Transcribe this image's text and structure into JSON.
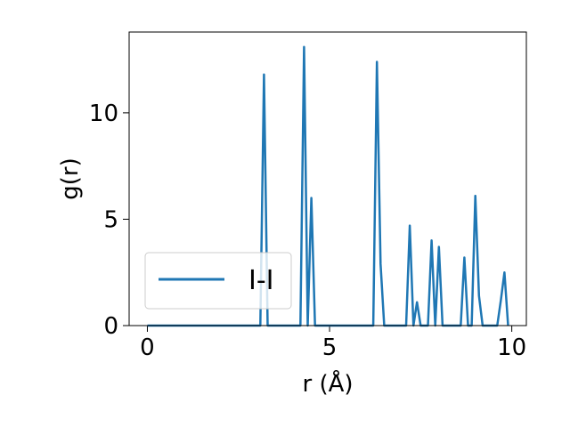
{
  "chart_data": {
    "type": "line",
    "title": "",
    "xlabel": "r (Å)",
    "ylabel": "g(r)",
    "xlim": [
      -0.5,
      10.4
    ],
    "ylim": [
      0,
      13.8
    ],
    "xticks": [
      0,
      5,
      10
    ],
    "yticks": [
      0,
      5,
      10
    ],
    "grid": false,
    "legend_position": "lower-left",
    "series": [
      {
        "name": "I-I",
        "color": "#1f77b4",
        "x": [
          0,
          3.1,
          3.2,
          3.3,
          4.2,
          4.3,
          4.4,
          4.5,
          4.6,
          6.2,
          6.3,
          6.4,
          6.5,
          7.1,
          7.2,
          7.3,
          7.4,
          7.5,
          7.7,
          7.8,
          7.9,
          8.0,
          8.1,
          8.2,
          8.6,
          8.7,
          8.8,
          8.9,
          9.0,
          9.1,
          9.2,
          9.6,
          9.7,
          9.8,
          9.9
        ],
        "y": [
          0,
          0,
          11.8,
          0,
          0,
          13.1,
          0,
          6.0,
          0,
          0,
          12.4,
          2.9,
          0,
          0,
          4.7,
          0,
          1.1,
          0,
          0,
          4.0,
          0,
          3.7,
          0,
          0,
          0,
          3.2,
          0,
          0,
          6.1,
          1.4,
          0,
          0,
          1.2,
          2.5,
          0
        ]
      }
    ]
  }
}
